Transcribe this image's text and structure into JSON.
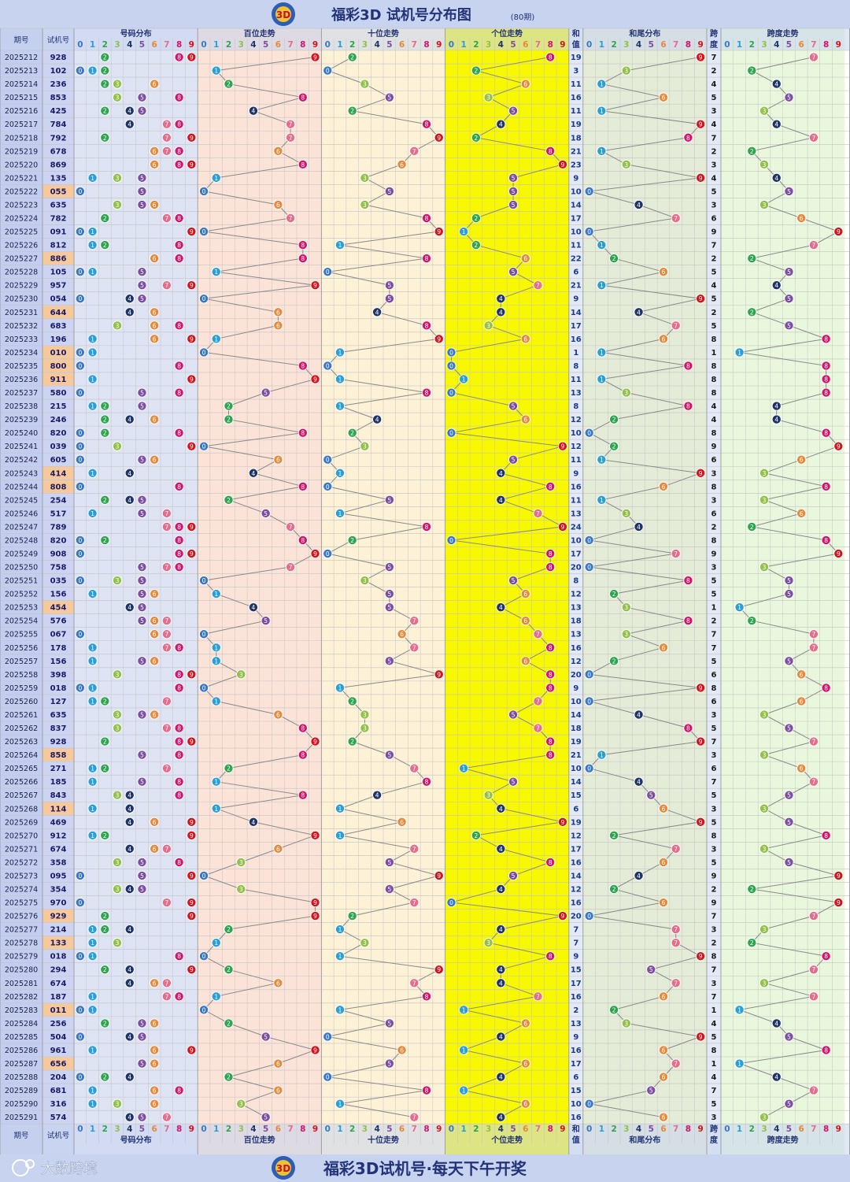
{
  "header": {
    "title": "福彩3D 试机号分布图",
    "period_badge": "(80期)"
  },
  "footer": {
    "slogan": "福彩3D试机号·每天下午开奖",
    "watermark": "大数跨境"
  },
  "columns": {
    "period": "期号",
    "number": "试机号",
    "distribution": "号码分布",
    "hundreds": "百位走势",
    "tens": "十位走势",
    "units": "个位走势",
    "sum_top": "和",
    "sum_bottom": "值",
    "sum_tail": "和尾分布",
    "span_top": "跨",
    "span_bottom": "度",
    "span_trend": "跨度走势",
    "digits": [
      "0",
      "1",
      "2",
      "3",
      "4",
      "5",
      "6",
      "7",
      "8",
      "9"
    ]
  },
  "colors": {
    "title_bg": "#c7d3ef",
    "col_header_bg": "#c7d3ef",
    "period_bg": "#c3cdf0",
    "number_bg": "#ccd4f2",
    "number_highlight": "#f7c89a",
    "dist_bg": "#dfe4f5",
    "hundreds_bg": "#fbe3d8",
    "tens_bg": "#fdf1d6",
    "units_bg": "#f8f800",
    "sum_bg": "#e3eaf5",
    "tail_bg": "#e4ecd8",
    "span_bg": "#e9f7dd",
    "grid": "#c4c4c4",
    "line": "#8a8a8a",
    "header_text": "#223377",
    "number_text": "#1a1a66"
  },
  "ball_colors": [
    "#3a78c6",
    "#2a9fd6",
    "#2ea44f",
    "#93c04a",
    "#1f3466",
    "#7b4ea0",
    "#e58a3c",
    "#e66c8c",
    "#d4146a",
    "#d4141c"
  ],
  "chart_data": {
    "type": "table",
    "title": "福彩3D 试机号分布图",
    "draws": [
      {
        "period": "2025212",
        "number": "928",
        "sum": 19,
        "span": 7
      },
      {
        "period": "2025213",
        "number": "102",
        "sum": 3,
        "span": 2
      },
      {
        "period": "2025214",
        "number": "236",
        "sum": 11,
        "span": 4
      },
      {
        "period": "2025215",
        "number": "853",
        "sum": 16,
        "span": 5
      },
      {
        "period": "2025216",
        "number": "425",
        "sum": 11,
        "span": 3
      },
      {
        "period": "2025217",
        "number": "784",
        "sum": 19,
        "span": 4
      },
      {
        "period": "2025218",
        "number": "792",
        "sum": 18,
        "span": 7
      },
      {
        "period": "2025219",
        "number": "678",
        "sum": 21,
        "span": 2
      },
      {
        "period": "2025220",
        "number": "869",
        "sum": 23,
        "span": 3
      },
      {
        "period": "2025221",
        "number": "135",
        "sum": 9,
        "span": 4
      },
      {
        "period": "2025222",
        "number": "055",
        "sum": 10,
        "span": 5
      },
      {
        "period": "2025223",
        "number": "635",
        "sum": 14,
        "span": 3
      },
      {
        "period": "2025224",
        "number": "782",
        "sum": 17,
        "span": 6
      },
      {
        "period": "2025225",
        "number": "091",
        "sum": 10,
        "span": 9
      },
      {
        "period": "2025226",
        "number": "812",
        "sum": 11,
        "span": 7
      },
      {
        "period": "2025227",
        "number": "886",
        "sum": 22,
        "span": 2
      },
      {
        "period": "2025228",
        "number": "105",
        "sum": 6,
        "span": 5
      },
      {
        "period": "2025229",
        "number": "957",
        "sum": 21,
        "span": 4
      },
      {
        "period": "2025230",
        "number": "054",
        "sum": 9,
        "span": 5
      },
      {
        "period": "2025231",
        "number": "644",
        "sum": 14,
        "span": 2
      },
      {
        "period": "2025232",
        "number": "683",
        "sum": 17,
        "span": 5
      },
      {
        "period": "2025233",
        "number": "196",
        "sum": 16,
        "span": 8
      },
      {
        "period": "2025234",
        "number": "010",
        "sum": 1,
        "span": 1
      },
      {
        "period": "2025235",
        "number": "800",
        "sum": 8,
        "span": 8
      },
      {
        "period": "2025236",
        "number": "911",
        "sum": 11,
        "span": 8
      },
      {
        "period": "2025237",
        "number": "580",
        "sum": 13,
        "span": 8
      },
      {
        "period": "2025238",
        "number": "215",
        "sum": 8,
        "span": 4
      },
      {
        "period": "2025239",
        "number": "246",
        "sum": 12,
        "span": 4
      },
      {
        "period": "2025240",
        "number": "820",
        "sum": 10,
        "span": 8
      },
      {
        "period": "2025241",
        "number": "039",
        "sum": 12,
        "span": 9
      },
      {
        "period": "2025242",
        "number": "605",
        "sum": 11,
        "span": 6
      },
      {
        "period": "2025243",
        "number": "414",
        "sum": 9,
        "span": 3
      },
      {
        "period": "2025244",
        "number": "808",
        "sum": 16,
        "span": 8
      },
      {
        "period": "2025245",
        "number": "254",
        "sum": 11,
        "span": 3
      },
      {
        "period": "2025246",
        "number": "517",
        "sum": 13,
        "span": 6
      },
      {
        "period": "2025247",
        "number": "789",
        "sum": 24,
        "span": 2
      },
      {
        "period": "2025248",
        "number": "820",
        "sum": 10,
        "span": 8
      },
      {
        "period": "2025249",
        "number": "908",
        "sum": 17,
        "span": 9
      },
      {
        "period": "2025250",
        "number": "758",
        "sum": 20,
        "span": 3
      },
      {
        "period": "2025251",
        "number": "035",
        "sum": 8,
        "span": 5
      },
      {
        "period": "2025252",
        "number": "156",
        "sum": 12,
        "span": 5
      },
      {
        "period": "2025253",
        "number": "454",
        "sum": 13,
        "span": 1
      },
      {
        "period": "2025254",
        "number": "576",
        "sum": 18,
        "span": 2
      },
      {
        "period": "2025255",
        "number": "067",
        "sum": 13,
        "span": 7
      },
      {
        "period": "2025256",
        "number": "178",
        "sum": 16,
        "span": 7
      },
      {
        "period": "2025257",
        "number": "156",
        "sum": 12,
        "span": 5
      },
      {
        "period": "2025258",
        "number": "398",
        "sum": 20,
        "span": 6
      },
      {
        "period": "2025259",
        "number": "018",
        "sum": 9,
        "span": 8
      },
      {
        "period": "2025260",
        "number": "127",
        "sum": 10,
        "span": 6
      },
      {
        "period": "2025261",
        "number": "635",
        "sum": 14,
        "span": 3
      },
      {
        "period": "2025262",
        "number": "837",
        "sum": 18,
        "span": 5
      },
      {
        "period": "2025263",
        "number": "928",
        "sum": 19,
        "span": 7
      },
      {
        "period": "2025264",
        "number": "858",
        "sum": 21,
        "span": 3
      },
      {
        "period": "2025265",
        "number": "271",
        "sum": 10,
        "span": 6
      },
      {
        "period": "2025266",
        "number": "185",
        "sum": 14,
        "span": 7
      },
      {
        "period": "2025267",
        "number": "843",
        "sum": 15,
        "span": 5
      },
      {
        "period": "2025268",
        "number": "114",
        "sum": 6,
        "span": 3
      },
      {
        "period": "2025269",
        "number": "469",
        "sum": 19,
        "span": 5
      },
      {
        "period": "2025270",
        "number": "912",
        "sum": 12,
        "span": 8
      },
      {
        "period": "2025271",
        "number": "674",
        "sum": 17,
        "span": 3
      },
      {
        "period": "2025272",
        "number": "358",
        "sum": 16,
        "span": 5
      },
      {
        "period": "2025273",
        "number": "095",
        "sum": 14,
        "span": 9
      },
      {
        "period": "2025274",
        "number": "354",
        "sum": 12,
        "span": 2
      },
      {
        "period": "2025275",
        "number": "970",
        "sum": 16,
        "span": 9
      },
      {
        "period": "2025276",
        "number": "929",
        "sum": 20,
        "span": 7
      },
      {
        "period": "2025277",
        "number": "214",
        "sum": 7,
        "span": 3
      },
      {
        "period": "2025278",
        "number": "133",
        "sum": 7,
        "span": 2
      },
      {
        "period": "2025279",
        "number": "018",
        "sum": 9,
        "span": 8
      },
      {
        "period": "2025280",
        "number": "294",
        "sum": 15,
        "span": 7
      },
      {
        "period": "2025281",
        "number": "674",
        "sum": 17,
        "span": 3
      },
      {
        "period": "2025282",
        "number": "187",
        "sum": 16,
        "span": 7
      },
      {
        "period": "2025283",
        "number": "011",
        "sum": 2,
        "span": 1
      },
      {
        "period": "2025284",
        "number": "256",
        "sum": 13,
        "span": 4
      },
      {
        "period": "2025285",
        "number": "504",
        "sum": 9,
        "span": 5
      },
      {
        "period": "2025286",
        "number": "961",
        "sum": 16,
        "span": 8
      },
      {
        "period": "2025287",
        "number": "656",
        "sum": 17,
        "span": 1
      },
      {
        "period": "2025288",
        "number": "204",
        "sum": 6,
        "span": 4
      },
      {
        "period": "2025289",
        "number": "681",
        "sum": 15,
        "span": 7
      },
      {
        "period": "2025290",
        "number": "316",
        "sum": 10,
        "span": 5
      },
      {
        "period": "2025291",
        "number": "574",
        "sum": 16,
        "span": 3
      }
    ]
  }
}
